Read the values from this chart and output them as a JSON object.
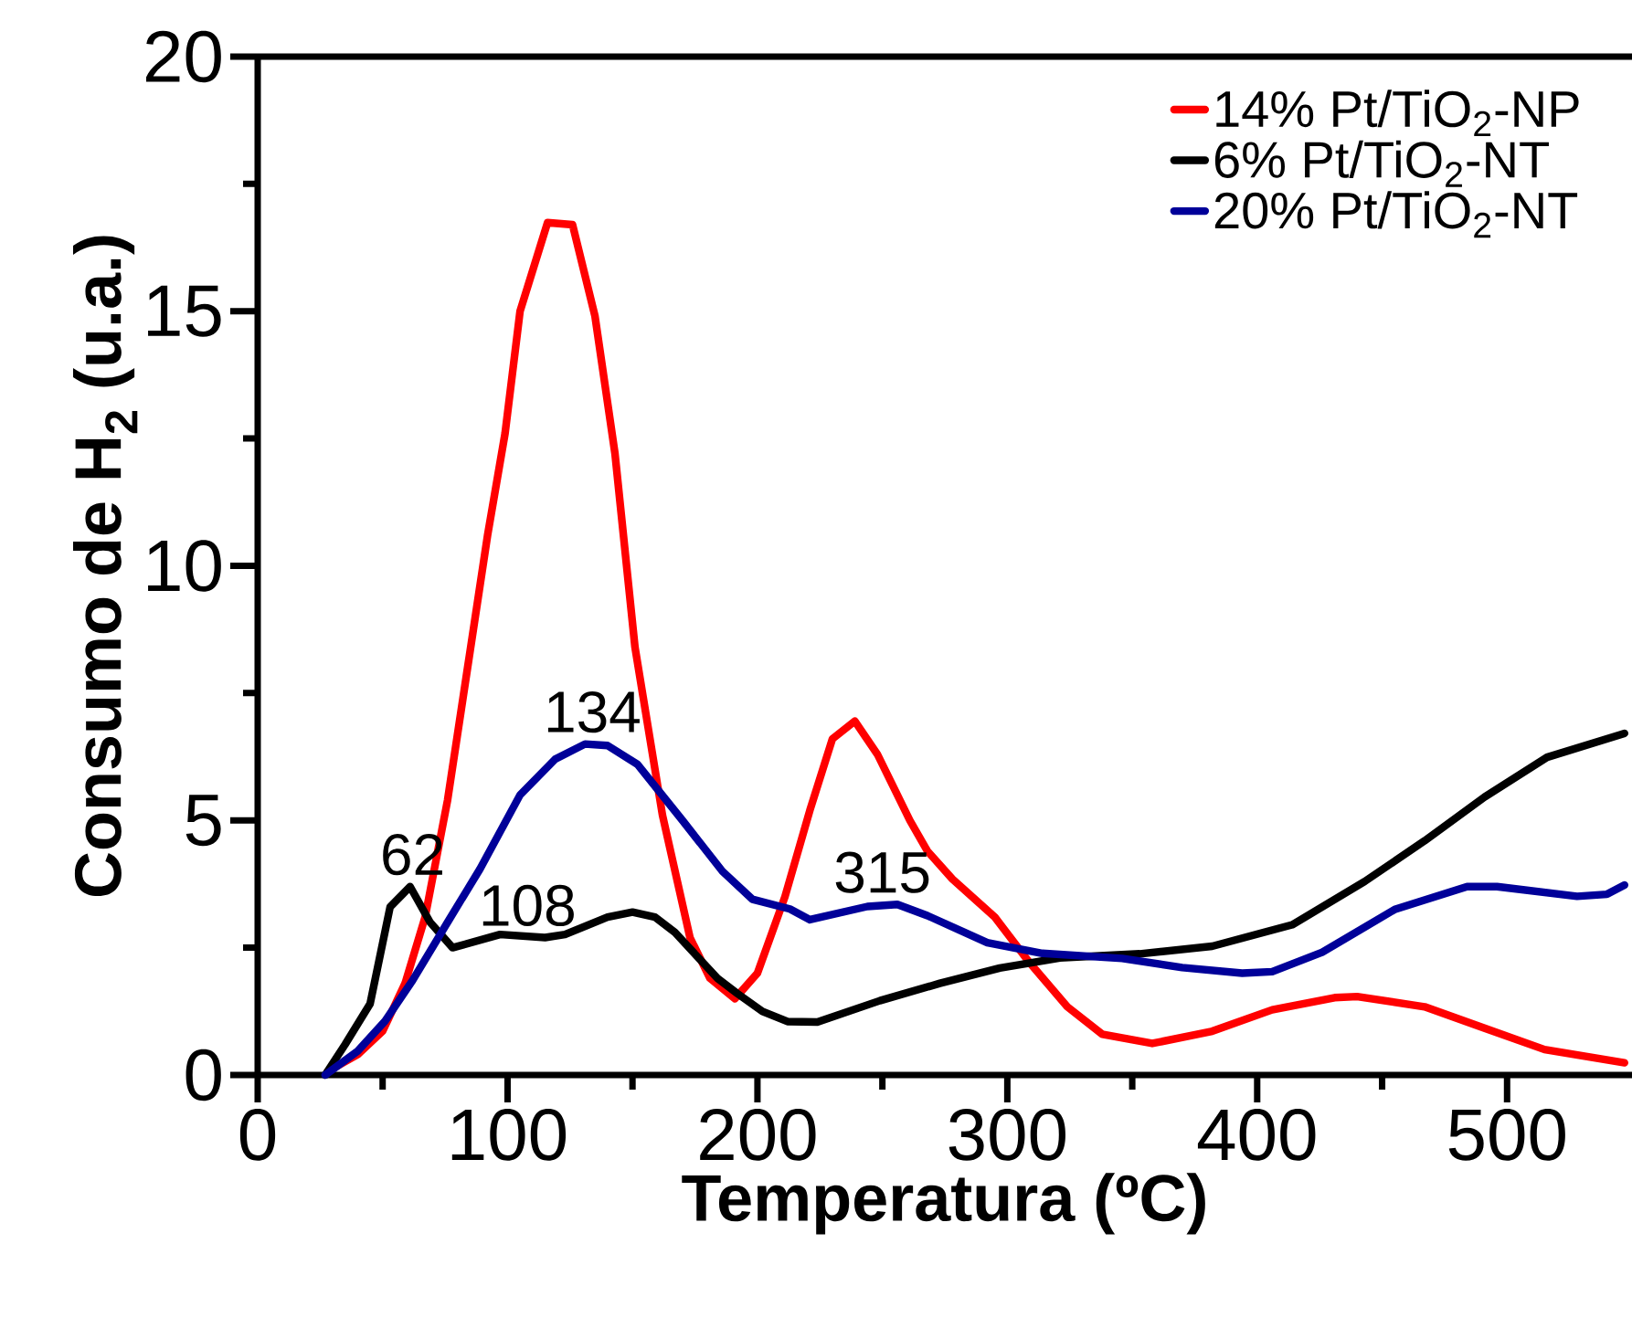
{
  "chart_data": {
    "type": "line",
    "xlabel": "Temperatura  (ºC)",
    "ylabel": "Consumo de H$_{2}$ (u.a.)",
    "xlim": [
      0,
      550
    ],
    "ylim": [
      0,
      20
    ],
    "xticks": [
      0,
      {
        "value": 50,
        "label": null
      },
      100,
      {
        "value": 150,
        "label": null
      },
      200,
      {
        "value": 250,
        "label": null
      },
      300,
      {
        "value": 350,
        "label": null
      },
      400,
      {
        "value": 450,
        "label": null
      },
      500
    ],
    "yticks": [
      0,
      {
        "value": 2.5,
        "label": null
      },
      5,
      {
        "value": 7.5,
        "label": null
      },
      10,
      {
        "value": 12.5,
        "label": null
      },
      15,
      {
        "value": 17.5,
        "label": null
      },
      20
    ],
    "legend": "top right",
    "series": [
      {
        "name": "14% Pt/TiO$_{2}$-NP",
        "color": "#ff0000",
        "x": [
          28,
          40,
          50,
          59,
          67,
          76,
          84,
          92,
          99,
          105,
          116,
          126,
          135,
          143,
          151,
          162,
          173,
          181,
          191,
          200,
          211,
          221,
          230,
          239,
          248,
          261,
          268,
          278,
          295,
          309,
          324,
          338,
          358,
          382,
          406,
          431,
          440,
          467,
          491,
          515,
          547
        ],
        "values": [
          0.07,
          0.4,
          0.86,
          1.8,
          3.1,
          5.4,
          8.0,
          10.6,
          12.6,
          15.0,
          16.74,
          16.7,
          14.9,
          12.2,
          8.4,
          5.1,
          2.7,
          1.9,
          1.5,
          2.0,
          3.5,
          5.2,
          6.6,
          6.95,
          6.3,
          5.0,
          4.4,
          3.85,
          3.1,
          2.2,
          1.34,
          0.8,
          0.62,
          0.86,
          1.28,
          1.52,
          1.54,
          1.34,
          0.92,
          0.5,
          0.24
        ]
      },
      {
        "name": "6% Pt/TiO$_{2}$-NT",
        "color": "#000000",
        "x": [
          27,
          35,
          45,
          53,
          61,
          69,
          78,
          97,
          115,
          123,
          140,
          150,
          159,
          167,
          184,
          192,
          202,
          212,
          224,
          249,
          273,
          297,
          321,
          353,
          382,
          414,
          443,
          467,
          491,
          516,
          547
        ],
        "values": [
          0,
          0.6,
          1.4,
          3.3,
          3.7,
          3.0,
          2.5,
          2.76,
          2.7,
          2.76,
          3.1,
          3.2,
          3.1,
          2.8,
          1.9,
          1.6,
          1.25,
          1.05,
          1.04,
          1.46,
          1.8,
          2.1,
          2.3,
          2.38,
          2.53,
          2.95,
          3.8,
          4.6,
          5.46,
          6.24,
          6.71
        ]
      },
      {
        "name": "20% Pt/TiO$_{2}$-NT",
        "color": "#000099",
        "x": [
          27,
          40,
          51,
          62,
          76,
          89,
          105,
          119,
          131,
          140,
          152,
          170,
          186,
          198,
          213,
          221,
          244,
          256,
          268,
          292,
          314,
          346,
          370,
          394,
          406,
          426,
          455,
          484,
          496,
          528,
          540,
          547
        ],
        "values": [
          0,
          0.47,
          1.06,
          1.86,
          3.0,
          4.05,
          5.5,
          6.2,
          6.5,
          6.47,
          6.1,
          5.0,
          4.0,
          3.45,
          3.26,
          3.05,
          3.31,
          3.35,
          3.13,
          2.6,
          2.39,
          2.29,
          2.11,
          2.0,
          2.03,
          2.41,
          3.25,
          3.7,
          3.7,
          3.51,
          3.55,
          3.73
        ]
      }
    ],
    "annotations": [
      {
        "text": "62",
        "x": 62,
        "y": 3.7
      },
      {
        "text": "108",
        "x": 108,
        "y": 2.7
      },
      {
        "text": "134",
        "x": 134,
        "y": 6.5
      },
      {
        "text": "315",
        "x": 250,
        "y": 3.35
      }
    ]
  }
}
